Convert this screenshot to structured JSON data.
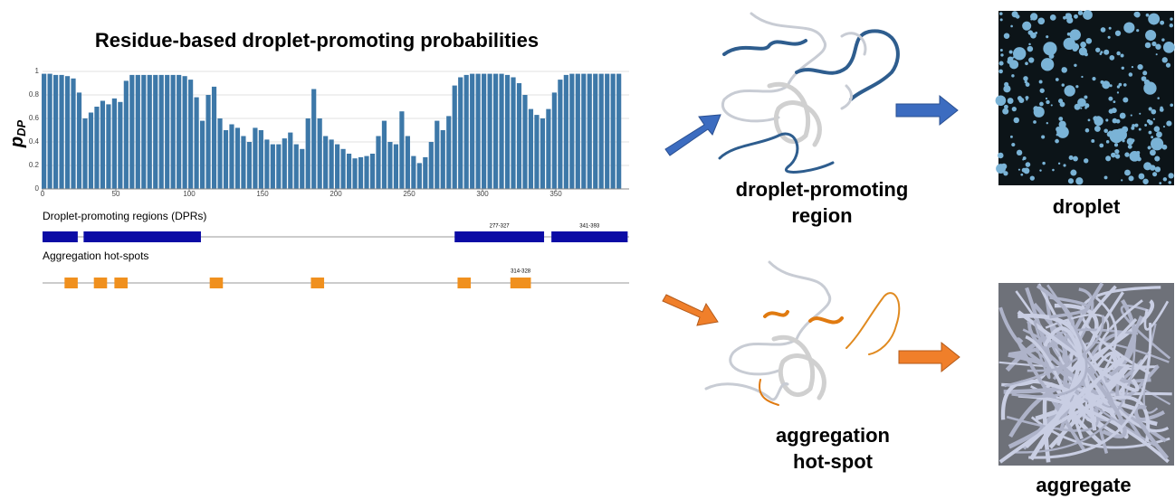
{
  "chart_data": {
    "type": "bar",
    "title": "Residue-based droplet-promoting probabilities",
    "ylabel": {
      "main": "p",
      "sub": "DP"
    },
    "color": "#3d78a8",
    "x": [
      1,
      5,
      9,
      13,
      17,
      21,
      25,
      29,
      33,
      37,
      41,
      45,
      49,
      53,
      57,
      61,
      65,
      69,
      73,
      77,
      81,
      85,
      89,
      93,
      97,
      101,
      105,
      109,
      113,
      117,
      121,
      125,
      129,
      133,
      137,
      141,
      145,
      149,
      153,
      157,
      161,
      165,
      169,
      173,
      177,
      181,
      185,
      189,
      193,
      197,
      201,
      205,
      209,
      213,
      217,
      221,
      225,
      229,
      233,
      237,
      241,
      245,
      249,
      253,
      257,
      261,
      265,
      269,
      273,
      277,
      281,
      285,
      289,
      293,
      297,
      301,
      305,
      309,
      313,
      317,
      321,
      325,
      329,
      333,
      337,
      341,
      345,
      349,
      353,
      357,
      361,
      365,
      369,
      373,
      377,
      381,
      385,
      389,
      393
    ],
    "values": [
      0.98,
      0.98,
      0.97,
      0.97,
      0.96,
      0.94,
      0.82,
      0.6,
      0.65,
      0.7,
      0.75,
      0.72,
      0.77,
      0.74,
      0.92,
      0.97,
      0.97,
      0.97,
      0.97,
      0.97,
      0.97,
      0.97,
      0.97,
      0.97,
      0.96,
      0.93,
      0.78,
      0.58,
      0.8,
      0.87,
      0.6,
      0.5,
      0.55,
      0.52,
      0.45,
      0.4,
      0.52,
      0.5,
      0.42,
      0.38,
      0.38,
      0.43,
      0.48,
      0.38,
      0.34,
      0.6,
      0.85,
      0.6,
      0.45,
      0.42,
      0.38,
      0.34,
      0.3,
      0.26,
      0.27,
      0.28,
      0.3,
      0.45,
      0.58,
      0.4,
      0.38,
      0.66,
      0.45,
      0.28,
      0.22,
      0.27,
      0.4,
      0.58,
      0.5,
      0.62,
      0.88,
      0.95,
      0.97,
      0.98,
      0.98,
      0.98,
      0.98,
      0.98,
      0.98,
      0.97,
      0.95,
      0.9,
      0.8,
      0.68,
      0.63,
      0.6,
      0.68,
      0.82,
      0.93,
      0.97,
      0.98,
      0.98,
      0.98,
      0.98,
      0.98,
      0.98,
      0.98,
      0.98,
      0.98
    ],
    "xlim": [
      0,
      400
    ],
    "xticks": [
      0,
      50,
      100,
      150,
      200,
      250,
      300,
      350
    ],
    "ylim": [
      0,
      1
    ],
    "yticks": [
      0,
      0.2,
      0.4,
      0.6,
      0.8,
      1
    ],
    "grid": true,
    "tracks": [
      {
        "label": "Droplet-promoting regions (DPRs)",
        "color": "#0b0ba5",
        "segments": [
          [
            0,
            24
          ],
          [
            28,
            108
          ],
          [
            281,
            342
          ],
          [
            347,
            399
          ]
        ],
        "segment_labels": [
          null,
          null,
          "277-327",
          "341-393"
        ]
      },
      {
        "label": "Aggregation hot-spots",
        "color": "#f0901e",
        "segments": [
          [
            15,
            24
          ],
          [
            35,
            44
          ],
          [
            49,
            58
          ],
          [
            114,
            123
          ],
          [
            183,
            192
          ],
          [
            283,
            292
          ],
          [
            319,
            333
          ]
        ],
        "segment_labels": [
          null,
          null,
          null,
          null,
          null,
          null,
          "314-328"
        ]
      }
    ]
  },
  "figure_labels": {
    "dpr": [
      "droplet-promoting",
      "region"
    ],
    "droplet": [
      "droplet"
    ],
    "hotspot": [
      "aggregation",
      "hot-spot"
    ],
    "aggregate": [
      "aggregate"
    ]
  }
}
